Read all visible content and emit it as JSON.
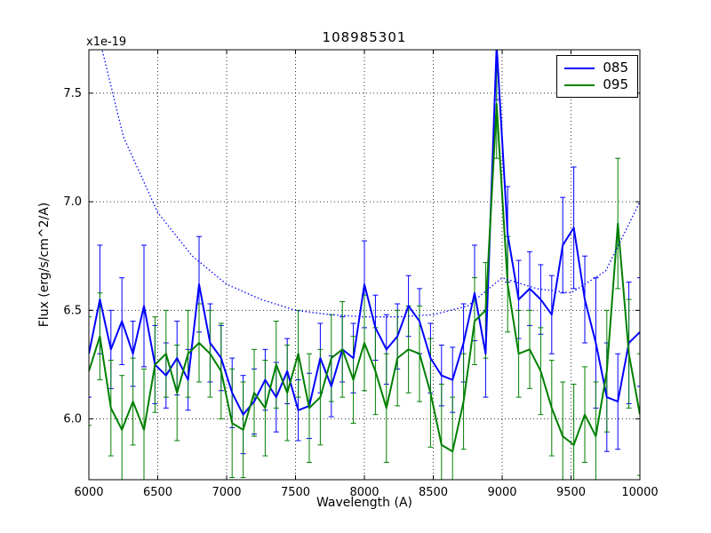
{
  "figure": {
    "title": "108985301",
    "offset_label": "x1e-19",
    "xlabel": "Wavelength (A)",
    "ylabel": "Flux (erg/s/cm^2/A)"
  },
  "legend": {
    "entries": [
      {
        "label": "085",
        "color": "#0000ff"
      },
      {
        "label": "095",
        "color": "#008000"
      }
    ]
  },
  "chart_data": {
    "type": "line",
    "title": "108985301",
    "xlabel": "Wavelength (A)",
    "ylabel": "Flux (erg/s/cm^2/A)",
    "y_offset_factor": "x1e-19",
    "xlim": [
      6000,
      10000
    ],
    "ylim": [
      5.72,
      7.7
    ],
    "xticks": [
      6000,
      6500,
      7000,
      7500,
      8000,
      8500,
      9000,
      9500,
      10000
    ],
    "yticks": [
      6.0,
      6.5,
      7.0,
      7.5
    ],
    "grid": true,
    "legend_position": "upper right",
    "x": [
      6000,
      6080,
      6160,
      6240,
      6320,
      6400,
      6480,
      6560,
      6640,
      6720,
      6800,
      6880,
      6960,
      7040,
      7120,
      7200,
      7280,
      7360,
      7440,
      7520,
      7600,
      7680,
      7760,
      7840,
      7920,
      8000,
      8080,
      8160,
      8240,
      8320,
      8400,
      8480,
      8560,
      8640,
      8720,
      8800,
      8880,
      8960,
      9040,
      9120,
      9200,
      9280,
      9360,
      9440,
      9520,
      9600,
      9680,
      9760,
      9840,
      9920,
      10000
    ],
    "series": [
      {
        "name": "085",
        "color": "#0000ff",
        "style": "solid",
        "values": [
          6.3,
          6.55,
          6.32,
          6.45,
          6.3,
          6.52,
          6.25,
          6.2,
          6.28,
          6.18,
          6.62,
          6.35,
          6.28,
          6.12,
          6.02,
          6.08,
          6.18,
          6.1,
          6.22,
          6.04,
          6.06,
          6.28,
          6.15,
          6.32,
          6.28,
          6.62,
          6.42,
          6.32,
          6.38,
          6.52,
          6.45,
          6.28,
          6.2,
          6.18,
          6.35,
          6.58,
          6.3,
          7.72,
          6.85,
          6.55,
          6.6,
          6.55,
          6.48,
          6.8,
          6.88,
          6.55,
          6.35,
          6.1,
          6.08,
          6.35,
          6.4
        ],
        "errors": [
          0.2,
          0.25,
          0.18,
          0.2,
          0.15,
          0.28,
          0.18,
          0.15,
          0.17,
          0.14,
          0.22,
          0.18,
          0.15,
          0.16,
          0.18,
          0.15,
          0.14,
          0.16,
          0.15,
          0.14,
          0.15,
          0.16,
          0.14,
          0.15,
          0.16,
          0.2,
          0.15,
          0.16,
          0.15,
          0.14,
          0.15,
          0.16,
          0.14,
          0.15,
          0.18,
          0.22,
          0.2,
          0.25,
          0.22,
          0.18,
          0.17,
          0.16,
          0.18,
          0.22,
          0.28,
          0.2,
          0.3,
          0.25,
          0.22,
          0.28,
          0.25
        ]
      },
      {
        "name": "095",
        "color": "#008000",
        "style": "solid",
        "values": [
          6.22,
          6.38,
          6.05,
          5.95,
          6.08,
          5.95,
          6.25,
          6.3,
          6.12,
          6.3,
          6.35,
          6.3,
          6.22,
          5.98,
          5.95,
          6.12,
          6.05,
          6.25,
          6.12,
          6.3,
          6.05,
          6.1,
          6.28,
          6.32,
          6.18,
          6.35,
          6.22,
          6.05,
          6.28,
          6.32,
          6.3,
          6.12,
          5.88,
          5.85,
          6.08,
          6.45,
          6.5,
          7.45,
          6.62,
          6.3,
          6.32,
          6.22,
          6.05,
          5.92,
          5.88,
          6.02,
          5.92,
          6.22,
          6.9,
          6.3,
          6.02
        ],
        "errors": [
          0.25,
          0.2,
          0.22,
          0.25,
          0.2,
          0.28,
          0.22,
          0.2,
          0.22,
          0.2,
          0.18,
          0.2,
          0.22,
          0.25,
          0.22,
          0.2,
          0.22,
          0.2,
          0.22,
          0.2,
          0.25,
          0.22,
          0.2,
          0.22,
          0.2,
          0.22,
          0.2,
          0.25,
          0.22,
          0.2,
          0.22,
          0.25,
          0.28,
          0.25,
          0.22,
          0.2,
          0.22,
          0.25,
          0.22,
          0.2,
          0.18,
          0.2,
          0.22,
          0.25,
          0.28,
          0.22,
          0.25,
          0.28,
          0.3,
          0.25,
          0.28
        ]
      }
    ],
    "model_curve": {
      "name": "085-dotted",
      "color": "#0000ff",
      "style": "dotted",
      "x": [
        6000,
        6250,
        6500,
        6750,
        7000,
        7250,
        7500,
        7750,
        8000,
        8250,
        8500,
        8750,
        9000,
        9250,
        9500,
        9750,
        10000
      ],
      "values": [
        7.95,
        7.3,
        6.95,
        6.75,
        6.62,
        6.55,
        6.5,
        6.48,
        6.47,
        6.47,
        6.48,
        6.52,
        6.65,
        6.6,
        6.58,
        6.68,
        7.0
      ]
    }
  }
}
